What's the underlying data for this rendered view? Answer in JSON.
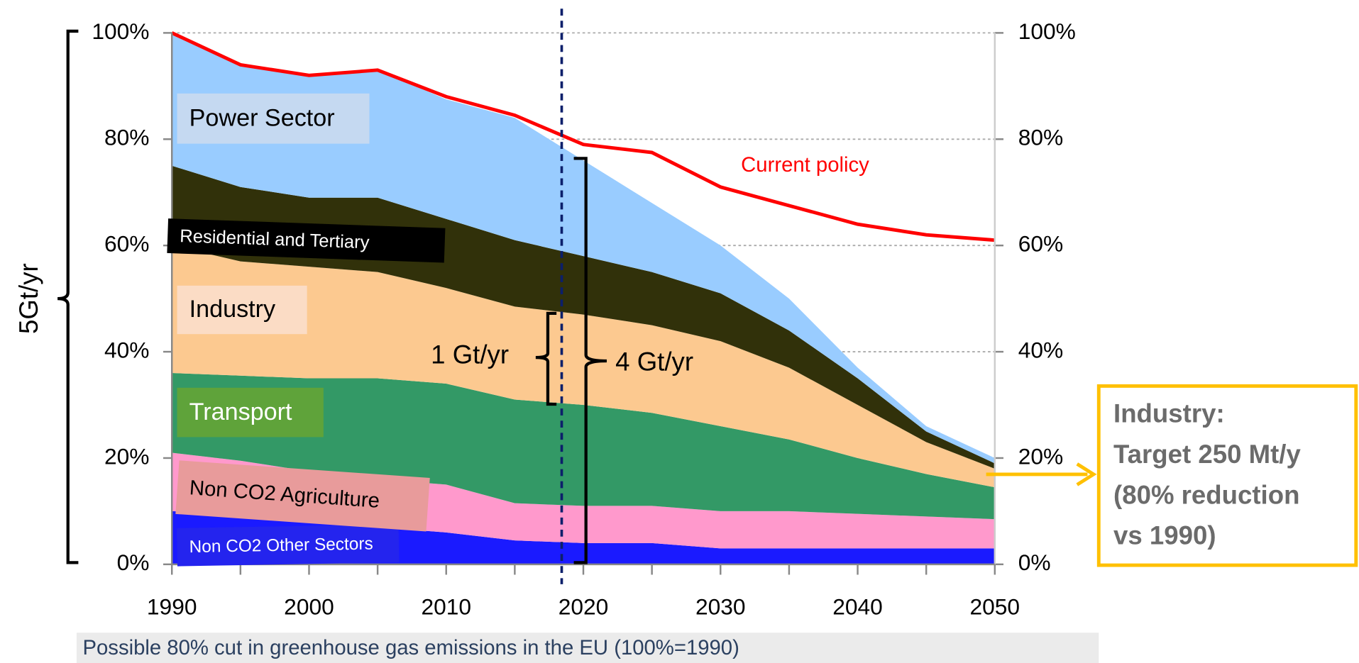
{
  "chart_data": {
    "type": "stacked_area",
    "caption": "Possible 80% cut in greenhouse gas emissions in the EU (100%=1990)",
    "x": [
      1990,
      1995,
      2000,
      2005,
      2010,
      2015,
      2020,
      2025,
      2030,
      2035,
      2040,
      2045,
      2050
    ],
    "xlim": [
      1990,
      2050
    ],
    "xticks": [
      1990,
      2000,
      2010,
      2020,
      2030,
      2040,
      2050
    ],
    "ylim": [
      0,
      100
    ],
    "yticks": [
      {
        "value": 0,
        "label": "0%"
      },
      {
        "value": 20,
        "label": "20%"
      },
      {
        "value": 40,
        "label": "40%"
      },
      {
        "value": 60,
        "label": "60%"
      },
      {
        "value": 80,
        "label": "80%"
      },
      {
        "value": 100,
        "label": "100%"
      }
    ],
    "grid": true,
    "series": [
      {
        "name": "Non CO2 Other Sectors",
        "color": "#1a1aff",
        "label_bg": "#2424ee",
        "label_color": "#ffffff",
        "values": [
          10,
          9.5,
          8,
          7,
          6,
          4.5,
          4,
          4,
          3,
          3,
          3,
          3,
          3
        ]
      },
      {
        "name": "Non CO2 Agriculture",
        "color": "#ff99cc",
        "label_bg": "#e89b9b",
        "label_color": "#000000",
        "values": [
          11,
          10,
          9.5,
          9,
          9,
          7,
          7,
          7,
          7,
          7,
          6.5,
          6,
          5.5
        ]
      },
      {
        "name": "Transport",
        "color": "#339966",
        "label_bg": "#5fa33a",
        "label_color": "#ffffff",
        "values": [
          15,
          16,
          17.5,
          19,
          19,
          19.5,
          19,
          17.5,
          16,
          13.5,
          10.5,
          8,
          6
        ]
      },
      {
        "name": "Industry",
        "color": "#fcc990",
        "label_bg": "#fbdcc5",
        "label_color": "#000000",
        "values": [
          24,
          21.5,
          21,
          20,
          18,
          17.5,
          17,
          16.5,
          16,
          13.5,
          10,
          6,
          3.5
        ]
      },
      {
        "name": "Residential and Tertiary",
        "color": "#31310a",
        "label_bg": "#000000",
        "label_color": "#ffffff",
        "values": [
          15,
          14,
          13,
          14,
          13,
          12.5,
          11,
          10,
          9,
          7,
          5,
          2,
          1
        ]
      },
      {
        "name": "Power Sector",
        "color": "#99ccff",
        "label_bg": "#c5d9f1",
        "label_color": "#000000",
        "values": [
          25,
          23,
          23,
          24,
          22.5,
          23,
          18,
          13,
          9,
          6,
          2,
          1,
          1
        ]
      }
    ],
    "line": {
      "name": "Current policy",
      "color": "#ff0000",
      "values": [
        100,
        94,
        92,
        93,
        88,
        84.5,
        79,
        77.5,
        71,
        67.5,
        64,
        62,
        61
      ]
    },
    "annotations": {
      "total": "5Gt/yr",
      "industry_share": "1 Gt/yr",
      "other_share": "4 Gt/yr"
    },
    "target_box": {
      "lines": [
        "Industry:",
        "Target 250 Mt/y",
        "(80% reduction",
        "vs 1990)"
      ]
    }
  }
}
